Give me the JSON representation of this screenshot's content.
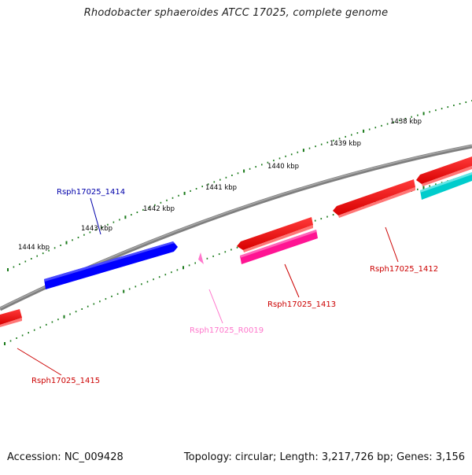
{
  "title": "Rhodobacter sphaeroides ATCC 17025, complete genome",
  "footer": {
    "accession": "Accession: NC_009428",
    "summary": "Topology: circular; Length: 3,217,726 bp; Genes: 3,156"
  },
  "colors": {
    "backbone": "#7f7f7f",
    "tick": "#1a7a1a",
    "forward_gene": "#ff0000",
    "reverse_gene": "#0000ff",
    "rrna_gene": "#ff1493",
    "trna_gene": "#ff77cc",
    "other_gene": "#00cccc",
    "tick_label": "#000000"
  },
  "scale_labels": [
    "1438 kbp",
    "1439 kbp",
    "1440 kbp",
    "1441 kbp",
    "1442 kbp",
    "1443 kbp",
    "1444 kbp"
  ],
  "gene_labels": [
    {
      "name": "Rsph17025_1414",
      "color": "#0000aa"
    },
    {
      "name": "Rsph17025_1412",
      "color": "#cc0000"
    },
    {
      "name": "Rsph17025_1413",
      "color": "#cc0000"
    },
    {
      "name": "Rsph17025_R0019",
      "color": "#ff77cc"
    },
    {
      "name": "Rsph17025_1415",
      "color": "#cc0000"
    }
  ]
}
